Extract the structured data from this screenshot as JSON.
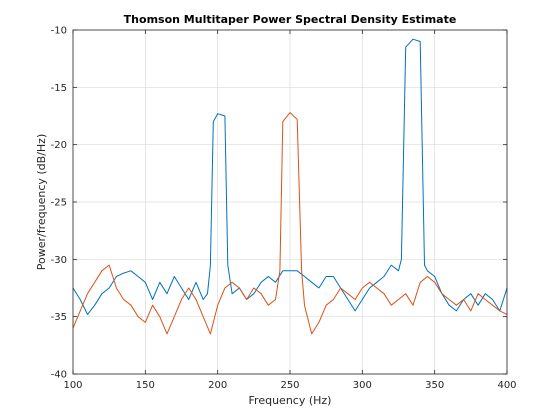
{
  "chart_data": {
    "type": "line",
    "title": "Thomson Multitaper Power Spectral Density Estimate",
    "xlabel": "Frequency (Hz)",
    "ylabel": "Power/frequency (dB/Hz)",
    "xlim": [
      100,
      400
    ],
    "ylim": [
      -40,
      -10
    ],
    "xticks": [
      100,
      150,
      200,
      250,
      300,
      350,
      400
    ],
    "yticks": [
      -40,
      -35,
      -30,
      -25,
      -20,
      -15,
      -10
    ],
    "grid": true,
    "series": [
      {
        "color": "#0072BD",
        "x": [
          100,
          105,
          110,
          115,
          120,
          125,
          130,
          135,
          140,
          145,
          150,
          155,
          160,
          165,
          170,
          175,
          180,
          185,
          190,
          193,
          195,
          197,
          200,
          205,
          207,
          210,
          215,
          220,
          225,
          230,
          235,
          240,
          245,
          250,
          255,
          260,
          265,
          270,
          275,
          280,
          285,
          290,
          295,
          300,
          305,
          310,
          315,
          320,
          325,
          327,
          330,
          335,
          340,
          343,
          345,
          350,
          355,
          360,
          365,
          370,
          375,
          380,
          385,
          390,
          395,
          400
        ],
        "y": [
          -32.5,
          -33.5,
          -34.8,
          -34.0,
          -33.0,
          -32.5,
          -31.5,
          -31.2,
          -31.0,
          -31.5,
          -32.0,
          -33.5,
          -32.0,
          -33.0,
          -31.5,
          -32.5,
          -33.5,
          -32.0,
          -33.5,
          -33.0,
          -30.5,
          -18.0,
          -17.3,
          -17.5,
          -30.5,
          -33.0,
          -32.5,
          -33.5,
          -33.0,
          -32.0,
          -31.5,
          -32.0,
          -31.0,
          -31.0,
          -31.0,
          -31.5,
          -32.0,
          -32.5,
          -31.5,
          -31.5,
          -32.5,
          -33.5,
          -34.5,
          -33.5,
          -32.5,
          -32.0,
          -31.5,
          -30.5,
          -31.0,
          -30.0,
          -11.5,
          -10.8,
          -11.0,
          -30.5,
          -31.0,
          -31.5,
          -33.0,
          -34.0,
          -34.5,
          -33.5,
          -33.0,
          -34.0,
          -33.0,
          -33.5,
          -34.5,
          -32.5
        ]
      },
      {
        "color": "#D95319",
        "x": [
          100,
          105,
          110,
          115,
          120,
          125,
          130,
          135,
          140,
          145,
          150,
          155,
          160,
          165,
          170,
          175,
          180,
          185,
          190,
          195,
          200,
          205,
          210,
          215,
          220,
          225,
          230,
          235,
          240,
          243,
          245,
          250,
          255,
          258,
          260,
          265,
          270,
          275,
          280,
          285,
          290,
          295,
          300,
          305,
          310,
          315,
          320,
          325,
          330,
          335,
          340,
          345,
          350,
          355,
          360,
          365,
          370,
          375,
          380,
          385,
          390,
          395,
          400
        ],
        "y": [
          -36.0,
          -34.5,
          -33.0,
          -32.0,
          -31.0,
          -30.5,
          -32.5,
          -33.5,
          -34.0,
          -35.0,
          -35.5,
          -34.0,
          -35.0,
          -36.5,
          -35.0,
          -33.5,
          -32.5,
          -33.5,
          -35.0,
          -36.5,
          -34.0,
          -32.5,
          -32.0,
          -32.5,
          -33.5,
          -32.5,
          -33.0,
          -34.0,
          -33.5,
          -31.0,
          -18.0,
          -17.2,
          -17.8,
          -31.0,
          -34.0,
          -36.5,
          -35.5,
          -34.0,
          -33.5,
          -32.5,
          -33.0,
          -33.5,
          -32.5,
          -32.0,
          -32.5,
          -33.0,
          -34.0,
          -33.5,
          -33.0,
          -34.0,
          -32.0,
          -31.5,
          -32.0,
          -33.0,
          -33.5,
          -34.0,
          -33.5,
          -34.5,
          -33.0,
          -33.5,
          -34.0,
          -34.5,
          -34.8
        ]
      }
    ]
  }
}
